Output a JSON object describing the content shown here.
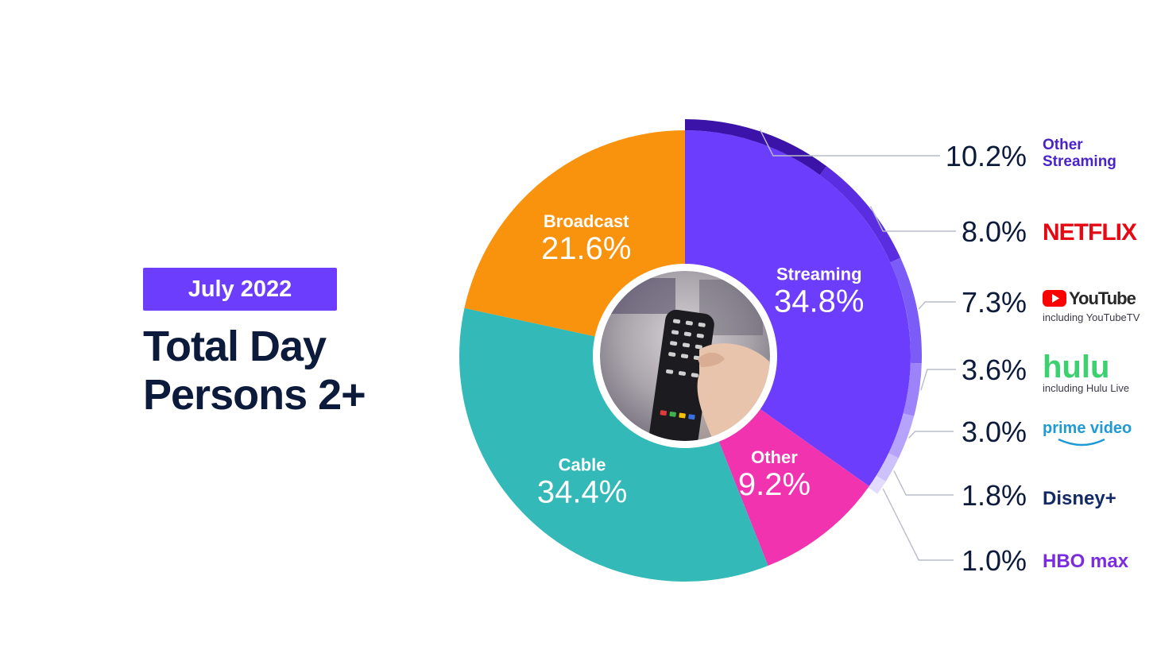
{
  "header": {
    "date_badge": "July 2022",
    "title_line1": "Total Day",
    "title_line2": "Persons 2+"
  },
  "chart_data": {
    "type": "pie",
    "title": "Total Day Persons 2+",
    "subtitle": "July 2022",
    "center_image": "tv-remote-photo",
    "slices": [
      {
        "label": "Streaming",
        "value": 34.8,
        "value_label": "34.8%",
        "color": "#6c3dfc"
      },
      {
        "label": "Other",
        "value": 9.2,
        "value_label": "9.2%",
        "color": "#f233b0"
      },
      {
        "label": "Cable",
        "value": 34.4,
        "value_label": "34.4%",
        "color": "#33b9b7"
      },
      {
        "label": "Broadcast",
        "value": 21.6,
        "value_label": "21.6%",
        "color": "#f9920c"
      }
    ],
    "streaming_breakdown": [
      {
        "label": "Other Streaming",
        "value": 10.2,
        "value_label": "10.2%",
        "color": "#3c13a8",
        "logo": "Other Streaming",
        "logo_sub": "",
        "logo_color": "#4a22c9"
      },
      {
        "label": "Netflix",
        "value": 8.0,
        "value_label": "8.0%",
        "color": "#5a2ee0",
        "logo": "NETFLIX",
        "logo_sub": "",
        "logo_color": "#e50914"
      },
      {
        "label": "YouTube",
        "value": 7.3,
        "value_label": "7.3%",
        "color": "#7b5cf7",
        "logo": "YouTube",
        "logo_sub": "including YouTubeTV",
        "logo_color": "#ff0000"
      },
      {
        "label": "Hulu",
        "value": 3.6,
        "value_label": "3.6%",
        "color": "#9c83fa",
        "logo": "hulu",
        "logo_sub": "including Hulu Live",
        "logo_color": "#3dd070"
      },
      {
        "label": "Prime Video",
        "value": 3.0,
        "value_label": "3.0%",
        "color": "#b6a3fb",
        "logo": "prime video",
        "logo_sub": "",
        "logo_color": "#1f9ad6"
      },
      {
        "label": "Disney+",
        "value": 1.8,
        "value_label": "1.8%",
        "color": "#cdc1fc",
        "logo": "Disney+",
        "logo_sub": "",
        "logo_color": "#132a66"
      },
      {
        "label": "HBO Max",
        "value": 1.0,
        "value_label": "1.0%",
        "color": "#e2dbfd",
        "logo": "HBO max",
        "logo_sub": "",
        "logo_color": "#7b2be0"
      }
    ]
  }
}
